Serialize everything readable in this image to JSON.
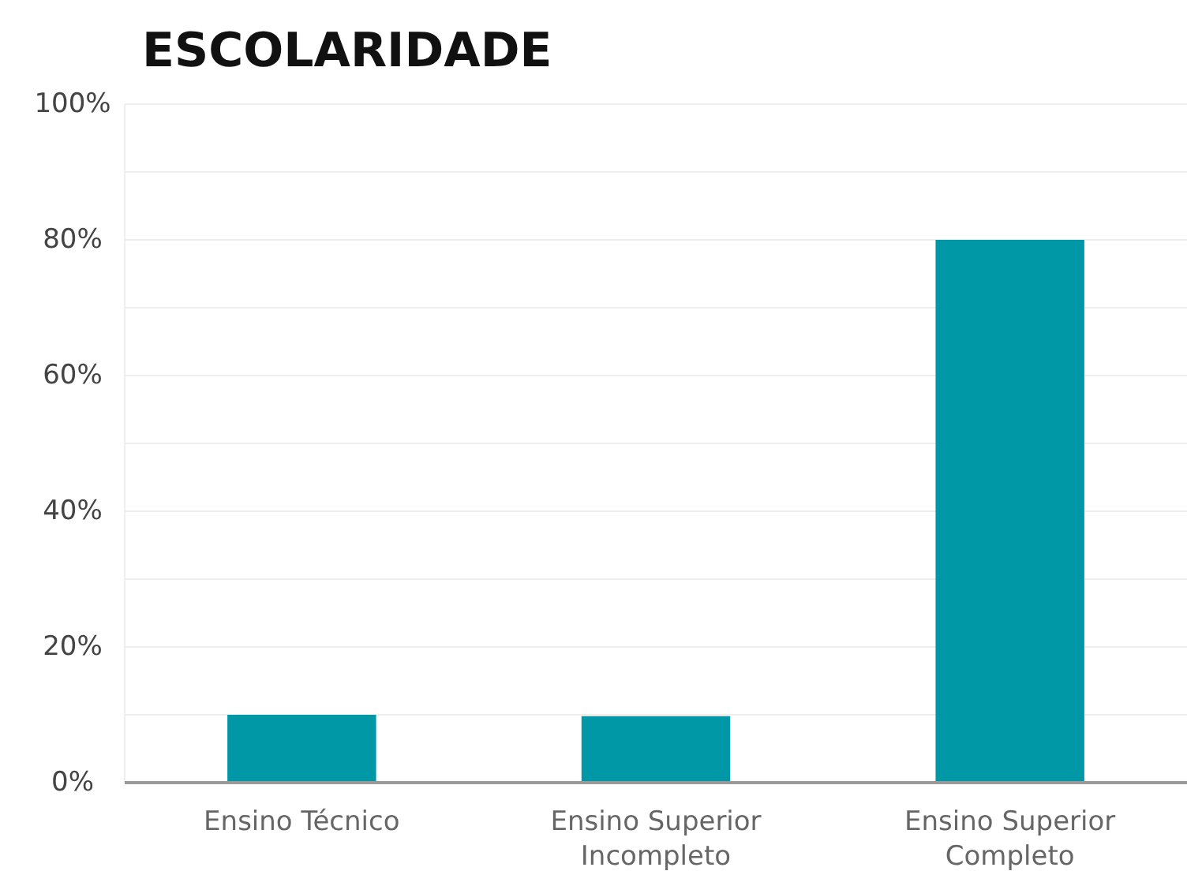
{
  "chart_data": {
    "type": "bar",
    "title": "ESCOLARIDADE",
    "categories": [
      "Ensino Técnico",
      "Ensino Superior Incompleto",
      "Ensino Superior Completo"
    ],
    "values": [
      10,
      9.8,
      80
    ],
    "color": "#0097a7",
    "ylim": [
      0,
      100
    ],
    "yticks": [
      {
        "value": 0,
        "label": "0%"
      },
      {
        "value": 10,
        "label": null
      },
      {
        "value": 20,
        "label": "20%"
      },
      {
        "value": 30,
        "label": null
      },
      {
        "value": 40,
        "label": "40%"
      },
      {
        "value": 50,
        "label": null
      },
      {
        "value": 60,
        "label": "60%"
      },
      {
        "value": 70,
        "label": null
      },
      {
        "value": 80,
        "label": "80%"
      },
      {
        "value": 90,
        "label": null
      },
      {
        "value": 100,
        "label": "100%"
      }
    ],
    "grid": "y"
  }
}
